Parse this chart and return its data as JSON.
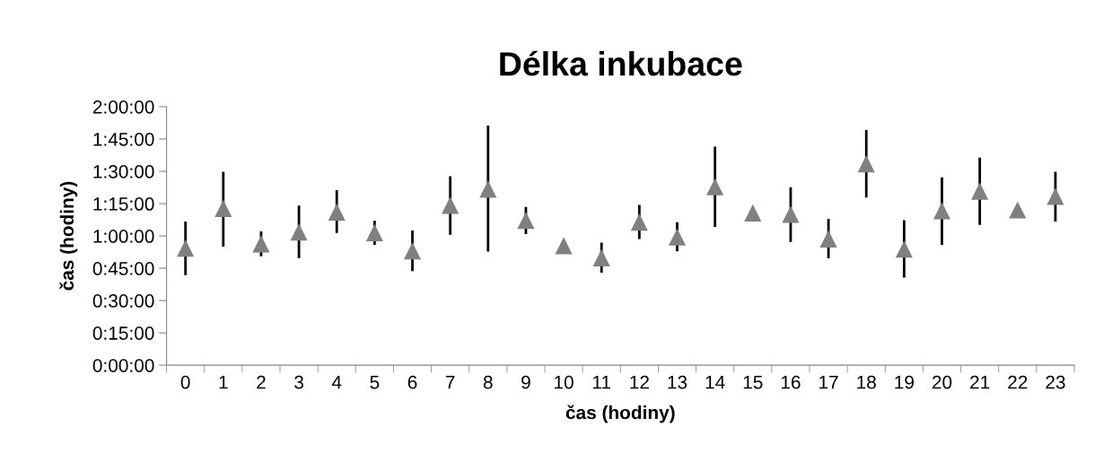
{
  "chart_data": {
    "type": "scatter",
    "title": "Délka inkubace",
    "xlabel": "čas (hodiny)",
    "ylabel": "čas (hodiny)",
    "categories": [
      "0",
      "1",
      "2",
      "3",
      "4",
      "5",
      "6",
      "7",
      "8",
      "9",
      "10",
      "11",
      "12",
      "13",
      "14",
      "15",
      "16",
      "17",
      "18",
      "19",
      "20",
      "21",
      "22",
      "23"
    ],
    "series": [
      {
        "color": "#808080",
        "values": [
          54.3,
          72.8,
          56.3,
          61.8,
          71.1,
          61.5,
          53.1,
          74.2,
          81.7,
          67.2,
          55.5,
          49.9,
          66.4,
          59.5,
          82.8,
          70.7,
          70.0,
          58.6,
          93.5,
          53.9,
          71.7,
          80.8,
          72.1,
          78.4
        ],
        "errors": [
          [
            41.8,
            66.7
          ],
          [
            55.0,
            89.8
          ],
          [
            50.5,
            62.1
          ],
          [
            49.7,
            74.1
          ],
          [
            61.4,
            81.3
          ],
          [
            55.9,
            67.1
          ],
          [
            43.7,
            62.5
          ],
          [
            60.5,
            87.7
          ],
          [
            52.7,
            111.2
          ],
          [
            60.9,
            73.4
          ],
          null,
          [
            43.0,
            56.9
          ],
          [
            58.6,
            74.4
          ],
          [
            52.8,
            66.4
          ],
          [
            64.2,
            101.4
          ],
          null,
          [
            57.2,
            82.6
          ],
          [
            49.6,
            67.9
          ],
          [
            77.8,
            109.2
          ],
          [
            40.7,
            67.3
          ],
          [
            55.9,
            87.2
          ],
          [
            65.1,
            96.4
          ],
          null,
          [
            66.7,
            89.8
          ]
        ]
      }
    ],
    "ylim": [
      0,
      120
    ],
    "yticks": [
      {
        "value": 0,
        "label": "0:00:00"
      },
      {
        "value": 15,
        "label": "0:15:00"
      },
      {
        "value": 30,
        "label": "0:30:00"
      },
      {
        "value": 45,
        "label": "0:45:00"
      },
      {
        "value": 60,
        "label": "1:00:00"
      },
      {
        "value": 75,
        "label": "1:15:00"
      },
      {
        "value": 90,
        "label": "1:30:00"
      },
      {
        "value": 105,
        "label": "1:45:00"
      },
      {
        "value": 120,
        "label": "2:00:00"
      }
    ],
    "marker": "triangle",
    "grid": false
  }
}
